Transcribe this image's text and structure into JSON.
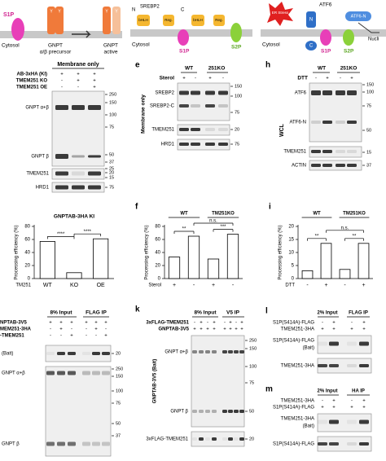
{
  "schematics": {
    "gnpt": {
      "enzyme": "S1P",
      "membrane": "Cytosol",
      "glyph": "Y",
      "precursor_line1": "GNPT",
      "precursor_line2": "α/β precursor",
      "active_line1": "GNPT",
      "active_line2": "active"
    },
    "srebp": {
      "n": "N",
      "c": "C",
      "protein": "SREBP2",
      "domain1": "bHLH",
      "domain2": "Reg.",
      "enzyme1": "S1P",
      "enzyme2": "S2P",
      "membrane": "Cytosol"
    },
    "atf6": {
      "stress": "ER Stress",
      "protein": "ATF6",
      "n": "N",
      "c": "C",
      "product": "ATF6-N",
      "dest": "Nucli",
      "enzyme1": "S1P",
      "enzyme2": "S2P",
      "membrane": "Cytosol"
    }
  },
  "blot_d": {
    "header": "Membrane only",
    "rows": [
      {
        "label": "AB-3xHA (KI)",
        "signs": [
          "+",
          "+",
          "+"
        ]
      },
      {
        "label": "TMEM251 KO",
        "signs": [
          "-",
          "+",
          "+"
        ]
      },
      {
        "label": "TMEM251 OE",
        "signs": [
          "-",
          "-",
          "+"
        ]
      }
    ],
    "bands": [
      "GNPT α+β",
      "GNPT β",
      "TMEM251",
      "HRD1"
    ],
    "mw": [
      250,
      150,
      100,
      75,
      50,
      37,
      25,
      20,
      15,
      75
    ]
  },
  "blot_e": {
    "letter": "e",
    "treatment": "Sterol",
    "groups": [
      "WT",
      "251KO"
    ],
    "signs": [
      "+",
      "-",
      "+",
      "-"
    ],
    "bands": [
      "SREBP2",
      "SREBP2-C",
      "TMEM251",
      "HRD1"
    ],
    "side": "Membrane only",
    "mw": [
      150,
      100,
      75,
      20,
      75
    ]
  },
  "blot_h": {
    "letter": "h",
    "treatment": "DTT",
    "groups": [
      "WT",
      "251KO"
    ],
    "signs": [
      "-",
      "+",
      "-",
      "+"
    ],
    "bands": [
      "ATF6",
      "ATF6-N",
      "TMEM251",
      "ACTIN"
    ],
    "side": "WCL",
    "mw": [
      150,
      100,
      75,
      50,
      15,
      37
    ]
  },
  "chart_data": [
    {
      "type": "bar",
      "title": "GNPTAB-3HA KI",
      "y_label": "Processing efficiency (%)",
      "x_label": "TM251",
      "categories": [
        "WT",
        "KO",
        "OE"
      ],
      "values": [
        57,
        9,
        61
      ],
      "color": "#ffffff",
      "ylim": [
        0,
        80
      ],
      "yticks": [
        0,
        20,
        40,
        60,
        80
      ],
      "significance": [
        {
          "label": "****",
          "from": 0,
          "to": 1
        },
        {
          "label": "****",
          "from": 1,
          "to": 2
        }
      ]
    },
    {
      "type": "bar",
      "letter": "f",
      "groups": [
        "WT",
        "TM251KO"
      ],
      "y_label": "Processing efficiency (%)",
      "x_label": "Sterol",
      "categories": [
        "+",
        "-",
        "+",
        "-"
      ],
      "values": [
        33,
        65,
        30,
        68
      ],
      "color": "#ffffff",
      "ylim": [
        0,
        80
      ],
      "yticks": [
        0,
        20,
        40,
        60,
        80
      ],
      "significance": [
        {
          "label": "**",
          "from": 0,
          "to": 1
        },
        {
          "label": "***",
          "from": 2,
          "to": 3
        },
        {
          "label": "n.s.",
          "from": 1,
          "to": 3
        }
      ]
    },
    {
      "type": "bar",
      "letter": "i",
      "groups": [
        "WT",
        "TM251KO"
      ],
      "y_label": "Processing efficiency (%)",
      "x_label": "DTT",
      "categories": [
        "-",
        "+",
        "-",
        "+"
      ],
      "values": [
        3,
        13.5,
        3.5,
        13.5
      ],
      "color": "#ffffff",
      "ylim": [
        0,
        20
      ],
      "yticks": [
        0,
        5,
        10,
        15,
        20
      ],
      "significance": [
        {
          "label": "**",
          "from": 0,
          "to": 1
        },
        {
          "label": "**",
          "from": 2,
          "to": 3
        },
        {
          "label": "n.s.",
          "from": 1,
          "to": 3
        }
      ]
    }
  ],
  "blot_j": {
    "input": "8% Input",
    "ip": "FLAG IP",
    "rows": [
      {
        "label": "NPTAB-3V5",
        "signs": [
          "+",
          "+",
          "+",
          "+",
          "+",
          "+"
        ]
      },
      {
        "label": "MEM251-3HA",
        "signs": [
          "-",
          "+",
          "-",
          "-",
          "+",
          "-"
        ]
      },
      {
        "label": "-TMEM251",
        "signs": [
          "-",
          "-",
          "+",
          "-",
          "-",
          "+"
        ]
      }
    ],
    "bait": "(Bait)",
    "bands": [
      "GNPT α+β",
      "GNPT β"
    ],
    "mw": [
      20,
      250,
      150,
      100,
      75,
      50,
      37
    ]
  },
  "blot_k": {
    "letter": "k",
    "input": "8% Input",
    "ip": "V5 IP",
    "rows": [
      {
        "label": "3xFLAG-TMEM251",
        "signs": [
          "-",
          "+",
          "-",
          "+",
          "-",
          "+",
          "-",
          "+"
        ]
      },
      {
        "label": "GNPTAB-3V5",
        "signs": [
          "+",
          "+",
          "+",
          "+",
          "+",
          "+",
          "+",
          "+"
        ]
      }
    ],
    "side": "GNPTAB-3V5 (Bait)",
    "bands": [
      "GNPT α+β",
      "GNPT β",
      "3xFLAG-TMEM251"
    ],
    "mw": [
      250,
      150,
      100,
      75,
      50,
      20
    ]
  },
  "blot_l": {
    "letter": "l",
    "input": "2% Input",
    "ip": "FLAG IP",
    "rows": [
      {
        "label": "S1P(S414A)-FLAG",
        "signs": [
          "-",
          "+",
          "-",
          "+"
        ]
      },
      {
        "label": "TMEM251-3HA",
        "signs": [
          "+",
          "+",
          "+",
          "+"
        ]
      }
    ],
    "bands": [
      "S1P(S414A)-FLAG",
      "(Bait)",
      "TMEM251-3HA"
    ]
  },
  "blot_m": {
    "letter": "m",
    "input": "2% Input",
    "ip": "HA IP",
    "rows": [
      {
        "label": "TMEM251-3HA",
        "signs": [
          "-",
          "+",
          "-",
          "+"
        ]
      },
      {
        "label": "S1P(S414A)-FLAG",
        "signs": [
          "+",
          "+",
          "+",
          "+"
        ]
      }
    ],
    "bands": [
      "TMEM251-3HA",
      "(Bait)",
      "S1P(S414A)-FLAG"
    ]
  }
}
